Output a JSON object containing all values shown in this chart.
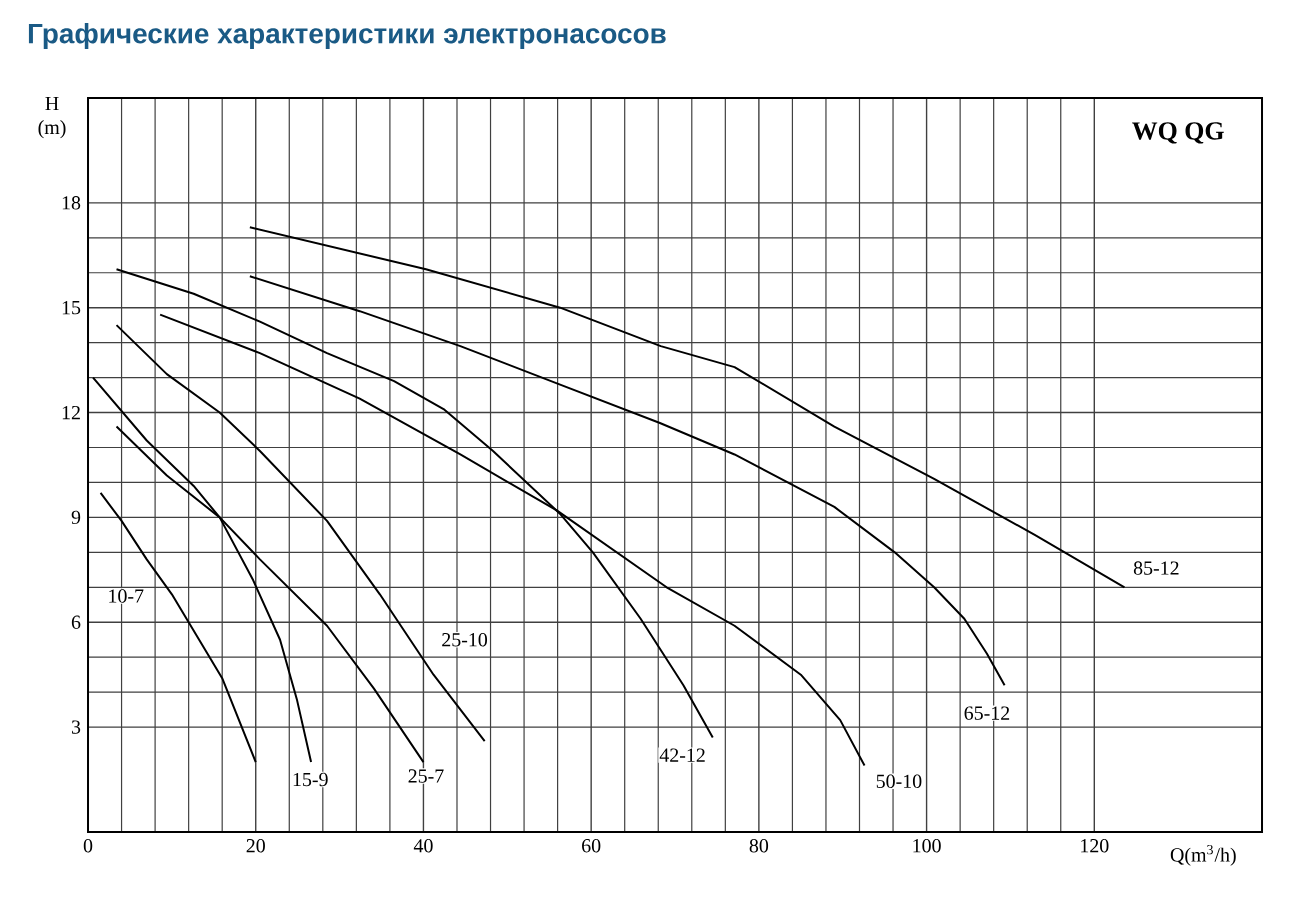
{
  "chart_data": {
    "type": "line",
    "title": "Графические характеристики электронасосов",
    "xlabel": "Q(m$^{3}$/h)",
    "ylabel": "H (m)",
    "annotations": [
      "WQ QG"
    ],
    "xlim": [
      0,
      140
    ],
    "ylim": [
      0,
      21
    ],
    "xticks": [
      0,
      20,
      40,
      60,
      80,
      100,
      120
    ],
    "yticks": [
      3,
      6,
      9,
      12,
      15,
      18
    ],
    "grid": true,
    "series": [
      {
        "name": "10-7",
        "color": "#000000",
        "x": [
          1.5,
          4,
          7,
          10,
          13,
          16,
          20
        ],
        "values": [
          9.7,
          8.9,
          7.8,
          6.8,
          5.6,
          4.4,
          2.0
        ]
      },
      {
        "name": "15-9",
        "color": "#000000",
        "x": [
          0.6,
          7,
          12.6,
          15.7,
          19.7,
          22.9,
          24.9,
          26.6
        ],
        "values": [
          13.0,
          11.2,
          9.9,
          9.0,
          7.2,
          5.5,
          3.8,
          2.0
        ]
      },
      {
        "name": "25-7",
        "color": "#000000",
        "x": [
          3.4,
          9.4,
          15.7,
          20.5,
          28.5,
          34.1,
          40
        ],
        "values": [
          11.6,
          10.2,
          9.0,
          7.8,
          5.9,
          4.1,
          2.0
        ]
      },
      {
        "name": "25-10",
        "color": "#000000",
        "x": [
          3.4,
          9.4,
          15.7,
          20.5,
          28.5,
          34.8,
          41.2,
          47.3
        ],
        "values": [
          14.5,
          13.1,
          12.0,
          10.9,
          8.9,
          6.8,
          4.5,
          2.6
        ]
      },
      {
        "name": "42-12",
        "color": "#000000",
        "x": [
          3.4,
          12.6,
          20.5,
          28.5,
          36.5,
          42.4,
          48.3,
          56.3,
          60.2,
          65.9,
          71,
          74.5
        ],
        "values": [
          16.1,
          15.4,
          14.6,
          13.7,
          12.9,
          12.1,
          10.9,
          9.1,
          8.0,
          6.1,
          4.2,
          2.7
        ]
      },
      {
        "name": "50-10",
        "color": "#000000",
        "x": [
          8.6,
          20.5,
          32.4,
          44.4,
          55.9,
          69,
          77.1,
          85,
          89.7,
          92.6
        ],
        "values": [
          14.8,
          13.7,
          12.4,
          10.8,
          9.2,
          7.0,
          5.9,
          4.5,
          3.2,
          1.9
        ]
      },
      {
        "name": "65-12",
        "color": "#000000",
        "x": [
          19.3,
          32.4,
          44.4,
          56.3,
          68.2,
          77.1,
          89,
          96.2,
          100.9,
          104.5,
          107.2,
          109.3
        ],
        "values": [
          15.9,
          14.9,
          13.9,
          12.8,
          11.7,
          10.8,
          9.3,
          8.0,
          7.0,
          6.1,
          5.1,
          4.2
        ]
      },
      {
        "name": "85-12",
        "color": "#000000",
        "x": [
          19.3,
          40.3,
          56.3,
          68.3,
          77.1,
          89,
          100.9,
          112.9,
          123.6
        ],
        "values": [
          17.3,
          16.1,
          15.0,
          13.9,
          13.3,
          11.6,
          10.1,
          8.5,
          7.0
        ]
      }
    ]
  }
}
